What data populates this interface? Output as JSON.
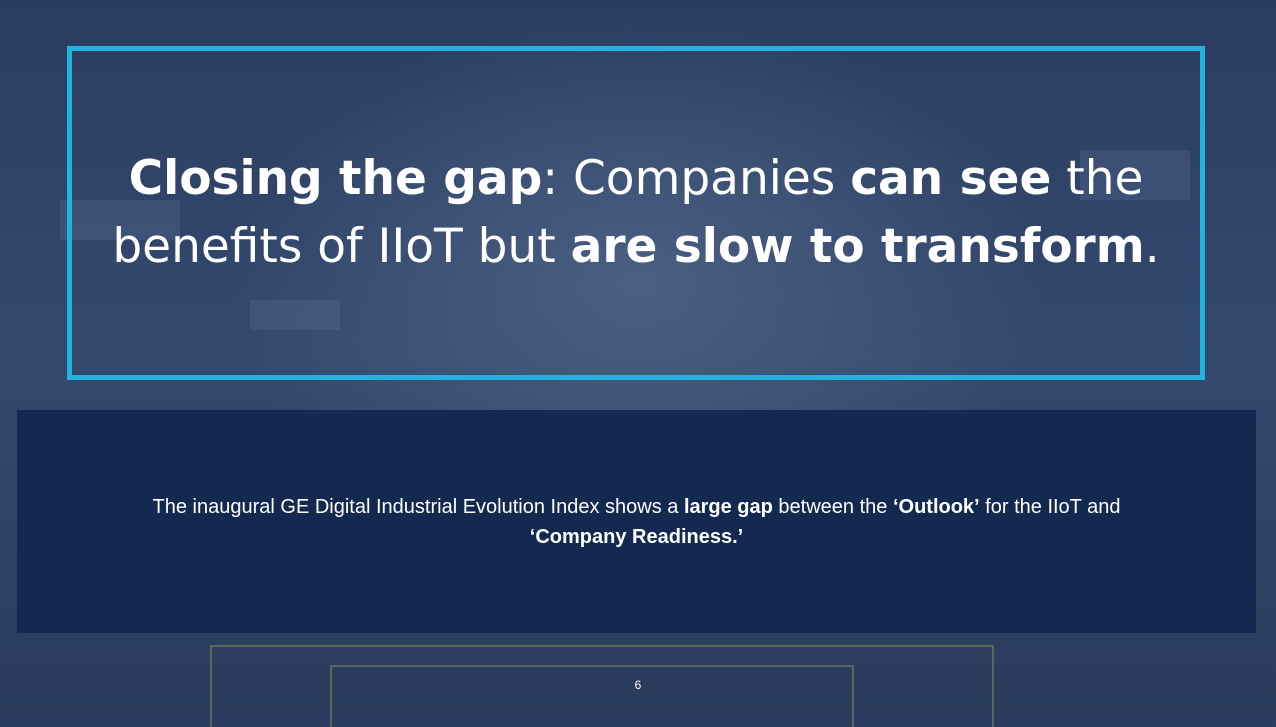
{
  "slide": {
    "title": {
      "part1_bold": "Closing the gap",
      "part2": ": Companies ",
      "part3_bold": "can see",
      "part4": " the benefits of IIoT but ",
      "part5_bold": "are slow to transform",
      "part6": "."
    },
    "body": {
      "part1": "The inaugural GE Digital Industrial Evolution Index shows a ",
      "part2_bold": "large gap",
      "part3": " between the ",
      "part4_bold": "‘Outlook’",
      "part5": " for the IIoT and ",
      "part6_bold": "‘Company Readiness.’"
    },
    "page_number": "6"
  },
  "colors": {
    "frame": "#1fb3e0",
    "info_box": "#13294f"
  }
}
